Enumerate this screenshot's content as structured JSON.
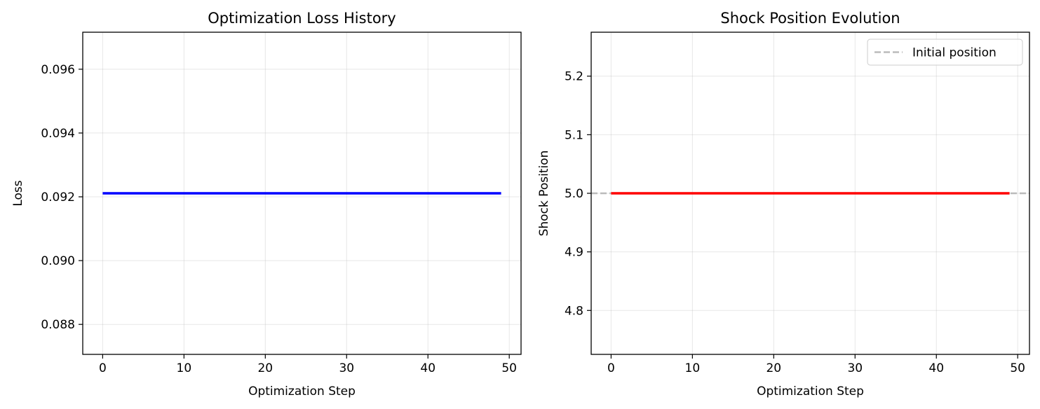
{
  "chart_data": [
    {
      "type": "line",
      "title": "Optimization Loss History",
      "xlabel": "Optimization Step",
      "ylabel": "Loss",
      "xlim": [
        -2.45,
        51.45
      ],
      "ylim": [
        0.08706,
        0.09716
      ],
      "xticks": [
        0,
        10,
        20,
        30,
        40,
        50
      ],
      "xtick_labels": [
        "0",
        "10",
        "20",
        "30",
        "40",
        "50"
      ],
      "yticks": [
        0.088,
        0.09,
        0.092,
        0.094,
        0.096
      ],
      "ytick_labels": [
        "0.088",
        "0.090",
        "0.092",
        "0.094",
        "0.096"
      ],
      "grid": true,
      "series": [
        {
          "color": "#0000ff",
          "x": [
            0,
            49
          ],
          "y": [
            0.09211,
            0.09211
          ],
          "dashed": false
        }
      ]
    },
    {
      "type": "line",
      "title": "Shock Position Evolution",
      "xlabel": "Optimization Step",
      "ylabel": "Shock Position",
      "xlim": [
        -2.45,
        51.45
      ],
      "ylim": [
        4.725,
        5.275
      ],
      "xticks": [
        0,
        10,
        20,
        30,
        40,
        50
      ],
      "xtick_labels": [
        "0",
        "10",
        "20",
        "30",
        "40",
        "50"
      ],
      "yticks": [
        4.8,
        4.9,
        5.0,
        5.1,
        5.2
      ],
      "ytick_labels": [
        "4.8",
        "4.9",
        "5.0",
        "5.1",
        "5.2"
      ],
      "grid": true,
      "legend_position": "upper right",
      "series": [
        {
          "name": "Initial position",
          "color": "#bbbbbb",
          "hline": 5.0,
          "dashed": true
        },
        {
          "color": "#ff0000",
          "x": [
            0,
            49
          ],
          "y": [
            5.0,
            5.0
          ],
          "dashed": false
        }
      ]
    }
  ]
}
